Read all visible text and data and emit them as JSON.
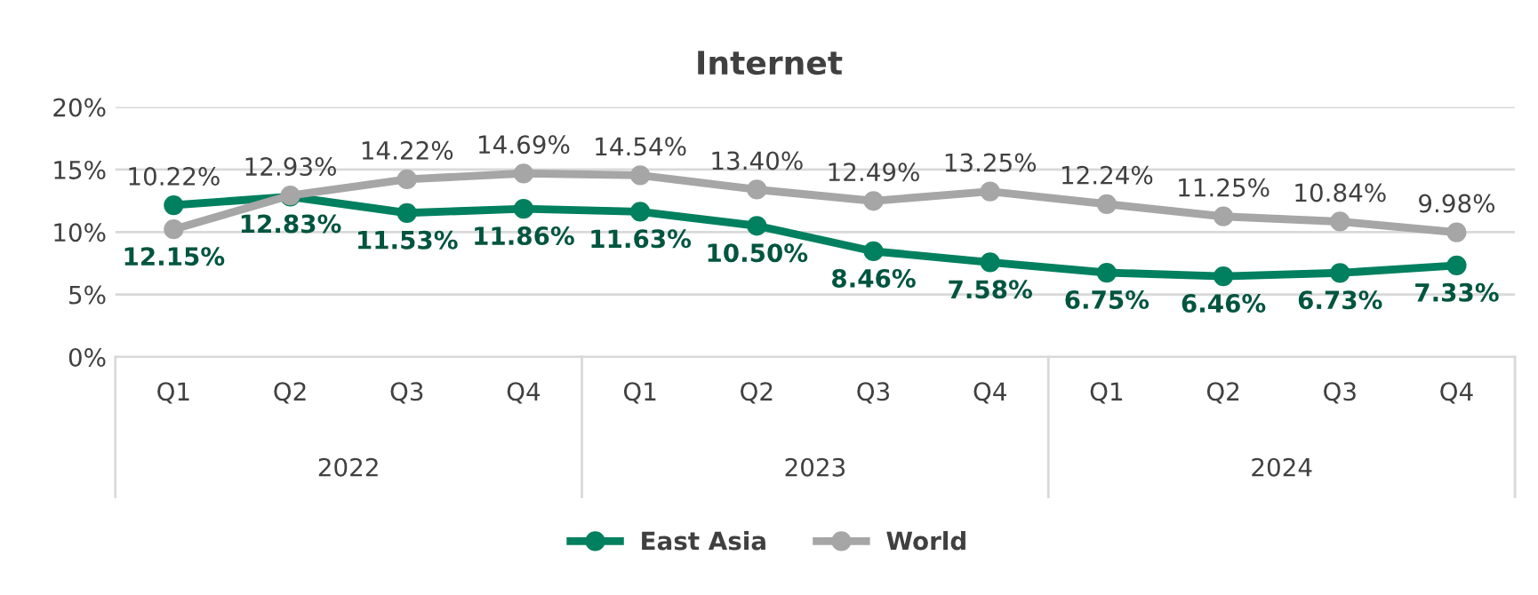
{
  "chart_data": {
    "type": "line",
    "title": "Internet",
    "categories": [
      "Q1",
      "Q2",
      "Q3",
      "Q4",
      "Q1",
      "Q2",
      "Q3",
      "Q4",
      "Q1",
      "Q2",
      "Q3",
      "Q4"
    ],
    "annotations": [
      "2022",
      "2023",
      "2024"
    ],
    "series": [
      {
        "name": "East Asia",
        "color": "#00805f",
        "values": [
          12.15,
          12.83,
          11.53,
          11.86,
          11.63,
          10.5,
          8.46,
          7.58,
          6.75,
          6.46,
          6.73,
          7.33
        ],
        "value_labels": [
          "12.15%",
          "12.83%",
          "11.53%",
          "11.86%",
          "11.63%",
          "10.50%",
          "8.46%",
          "7.58%",
          "6.75%",
          "6.46%",
          "6.73%",
          "7.33%"
        ]
      },
      {
        "name": "World",
        "color": "#a6a6a6",
        "values": [
          10.22,
          12.93,
          14.22,
          14.69,
          14.54,
          13.4,
          12.49,
          13.25,
          12.24,
          11.25,
          10.84,
          9.98
        ],
        "value_labels": [
          "10.22%",
          "12.93%",
          "14.22%",
          "14.69%",
          "14.54%",
          "13.40%",
          "12.49%",
          "13.25%",
          "12.24%",
          "11.25%",
          "10.84%",
          "9.98%"
        ]
      }
    ],
    "ylim": [
      0,
      20
    ],
    "yticks": [
      {
        "value": 0,
        "label": "0%"
      },
      {
        "value": 5,
        "label": "5%"
      },
      {
        "value": 10,
        "label": "10%"
      },
      {
        "value": 15,
        "label": "15%"
      },
      {
        "value": 20,
        "label": "20%"
      }
    ],
    "grid": "y",
    "legend": "bottom",
    "marker": "circle",
    "line_style": "solid"
  }
}
